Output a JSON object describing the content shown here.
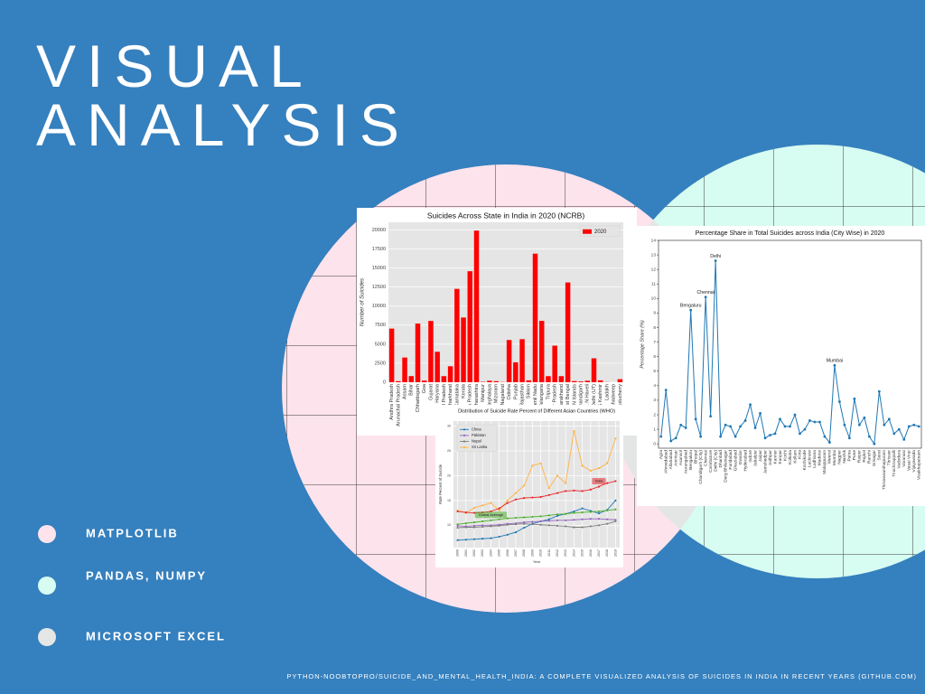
{
  "slide": {
    "title_lines": [
      "VISUAL",
      "ANALYSIS"
    ],
    "bullets": [
      "MATPLOTLIB",
      "PANDAS,  NUMPY",
      "MICROSOFT EXCEL"
    ],
    "footer": "PYTHON-NOOBTOPRO/SUICIDE_AND_MENTAL_HEALTH_INDIA: A COMPLETE VISUALIZED ANALYSIS OF SUICIDES IN INDIA IN RECENT YEARS (GITHUB.COM)"
  },
  "chart_data": [
    {
      "type": "bar",
      "title": "Suicides Across State in India in 2020 (NCRB)",
      "y_label": "Number of Suicides",
      "categories": [
        "Andhra Pradesh",
        "Arunachal Pradesh",
        "Assam",
        "Bihar",
        "Chhattisgarh",
        "Goa",
        "Gujarat",
        "Haryana",
        "Himachal Pradesh",
        "Jharkhand",
        "Karnataka",
        "Kerala",
        "Madhya Pradesh",
        "Maharashtra",
        "Manipur",
        "Meghalaya",
        "Mizoram",
        "Nagaland",
        "Odisha",
        "Punjab",
        "Rajasthan",
        "Sikkim",
        "Tamil Nadu",
        "Telangana",
        "Tripura",
        "Uttar Pradesh",
        "Uttarakhand",
        "West Bengal",
        "A & N Islands",
        "Chandigarh",
        "D & N Haveli",
        "Delhi (UT)",
        "Jammu & Kashmir",
        "Ladakh",
        "Lakshadweep",
        "Puducherry"
      ],
      "series": [
        {
          "name": "2020",
          "color": "#ff0000",
          "values": [
            7043,
            135,
            3246,
            809,
            7710,
            223,
            8050,
            4000,
            800,
            2100,
            12259,
            8500,
            14578,
            19909,
            50,
            200,
            140,
            30,
            5546,
            2616,
            5658,
            250,
            16883,
            8058,
            800,
            4804,
            800,
            13103,
            150,
            100,
            200,
            3142,
            250,
            20,
            0,
            400
          ]
        }
      ],
      "ylim": [
        0,
        21000
      ],
      "yticks": [
        0,
        2500,
        5000,
        7500,
        10000,
        12500,
        15000,
        17500,
        20000
      ],
      "grid": true,
      "facecolor": "#e5e5e5",
      "legend": "upper right"
    },
    {
      "type": "line",
      "title": "Distribution of Suicide Rate Percent of Different Asian Countries (WHO)",
      "x_label": "Year",
      "y_label": "Rate Percent of Suicide",
      "x": [
        2000,
        2001,
        2002,
        2003,
        2004,
        2005,
        2006,
        2007,
        2008,
        2009,
        2010,
        2011,
        2012,
        2013,
        2014,
        2015,
        2016,
        2017,
        2018,
        2019
      ],
      "series": [
        {
          "name": "China",
          "color": "#1f77b4",
          "values": [
            7,
            7.1,
            7.2,
            7.3,
            7.4,
            7.7,
            8.1,
            8.6,
            9.5,
            10.3,
            10.8,
            11.2,
            11.9,
            12.3,
            12.8,
            13.4,
            12.9,
            12.4,
            13.1,
            15
          ]
        },
        {
          "name": "Pakistan",
          "color": "#9467bd",
          "values": [
            9.9,
            9.8,
            9.9,
            10,
            10,
            10.1,
            10.3,
            10.4,
            10.6,
            10.7,
            10.8,
            10.9,
            11,
            11,
            11.1,
            11.2,
            11.3,
            11.3,
            11.2,
            11.1
          ]
        },
        {
          "name": "Nepal",
          "color": "#7f7f7f",
          "values": [
            9.5,
            9.6,
            9.6,
            9.7,
            9.8,
            9.9,
            10.1,
            10.2,
            10.3,
            10.2,
            10.1,
            10,
            9.9,
            9.8,
            9.6,
            9.6,
            9.8,
            10,
            10.3,
            10.8
          ]
        },
        {
          "name": "Sri Lanka",
          "color": "#ffb347",
          "values": [
            13,
            12.5,
            13.5,
            14,
            14.5,
            13,
            15,
            16.5,
            18,
            22,
            22.5,
            17.5,
            20,
            18.5,
            29,
            22,
            21,
            21.5,
            22.5,
            27.5
          ]
        },
        {
          "name": "India",
          "color": "#e8272c",
          "label_box": true,
          "values": [
            12.8,
            12.6,
            12.5,
            12.6,
            12.8,
            13.4,
            14.5,
            15.2,
            15.5,
            15.6,
            15.7,
            16.1,
            16.5,
            16.9,
            17,
            16.9,
            17.2,
            17.8,
            18.5,
            18.9
          ]
        },
        {
          "name": "Global Average",
          "color": "#4caf2c",
          "label_box": true,
          "values": [
            10.2,
            10.4,
            10.6,
            10.8,
            11,
            11.2,
            11.4,
            11.5,
            11.6,
            11.7,
            11.8,
            12,
            12.2,
            12.3,
            12.5,
            12.6,
            12.7,
            12.8,
            13,
            13.2
          ]
        }
      ],
      "xlim": [
        1999.5,
        2019.5
      ],
      "xticks": [
        2000,
        2001,
        2002,
        2003,
        2004,
        2005,
        2006,
        2007,
        2008,
        2009,
        2010,
        2011,
        2012,
        2013,
        2014,
        2015,
        2016,
        2017,
        2018,
        2019
      ],
      "ylim": [
        5.5,
        31
      ],
      "yticks": [
        10,
        15,
        20,
        25,
        30
      ],
      "grid": true,
      "facecolor": "#e5e5e5",
      "legend": "upper left"
    },
    {
      "type": "line",
      "title": "Percentage Share in Total Suicides across India (City Wise) in 2020",
      "y_label": "Percentage Share (%)",
      "categories": [
        "Agra",
        "Ahmedabad",
        "Allahabad",
        "Amritsar",
        "Asansol",
        "Aurangabad",
        "Bengaluru",
        "Bhopal",
        "Chandigarh (City)",
        "Chennai",
        "Coimbatore",
        "Delhi (City)",
        "Dhanbad",
        "Durg Bhilainagar",
        "Faridabad",
        "Ghaziabad",
        "Gwalior",
        "Hyderabad",
        "Indore",
        "Jabalpur",
        "Jaipur",
        "Jamshedpur",
        "Jodhpur",
        "Kannur",
        "Kanpur",
        "Kochi",
        "Kolkata",
        "Kollam",
        "Kota",
        "Kozhikode",
        "Lucknow",
        "Ludhiana",
        "Madurai",
        "Malappuram",
        "Meerut",
        "Mumbai",
        "Nagpur",
        "Nashik",
        "Patna",
        "Pune",
        "Raipur",
        "Rajkot",
        "Ranchi",
        "Srinagar",
        "Surat",
        "Thiruvananthapuram",
        "Thrissur",
        "Tiruchirappalli",
        "Vadodara",
        "Varanasi",
        "Vasai Virar",
        "Vijayawada",
        "Visakhapatnam"
      ],
      "series": [
        {
          "name": "Percentage Share",
          "color": "#1f77b4",
          "no_legend": true,
          "values": [
            0.5,
            3.7,
            0.2,
            0.4,
            1.3,
            1.1,
            9.2,
            1.7,
            0.5,
            10.1,
            1.9,
            12.6,
            0.5,
            1.3,
            1.2,
            0.5,
            1.2,
            1.6,
            2.7,
            1.1,
            2.1,
            0.4,
            0.6,
            0.7,
            1.7,
            1.2,
            1.2,
            2,
            0.7,
            1,
            1.6,
            1.5,
            1.5,
            0.5,
            0.1,
            5.4,
            2.9,
            1.3,
            0.4,
            3.1,
            1.3,
            1.8,
            0.5,
            0,
            3.6,
            1.3,
            1.7,
            0.7,
            1,
            0.3,
            1.2,
            1.3,
            1.2
          ]
        }
      ],
      "annotations": [
        {
          "text": "Bengaluru",
          "category": "Bengaluru"
        },
        {
          "text": "Chennai",
          "category": "Chennai"
        },
        {
          "text": "Delhi",
          "category": "Delhi (City)"
        },
        {
          "text": "Mumbai",
          "category": "Mumbai"
        }
      ],
      "ylim": [
        -0.3,
        14
      ],
      "yticks": [
        0,
        1,
        2,
        3,
        4,
        5,
        6,
        7,
        8,
        9,
        10,
        11,
        12,
        13,
        14
      ],
      "grid": false,
      "facecolor": "#ffffff"
    }
  ]
}
